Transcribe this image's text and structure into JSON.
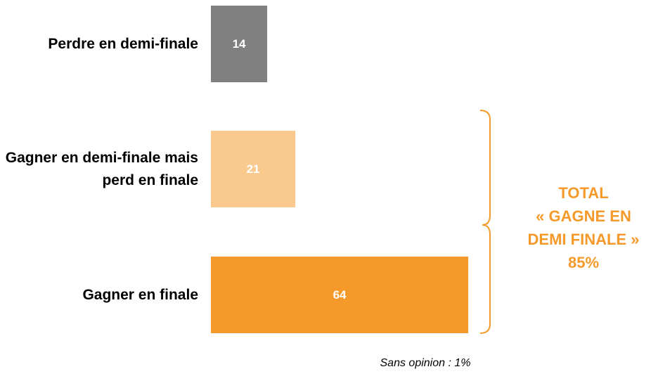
{
  "chart_data": {
    "type": "bar",
    "orientation": "horizontal",
    "categories": [
      "Perdre en demi-finale",
      "Gagner en demi-finale mais perd en finale",
      "Gagner en finale"
    ],
    "values": [
      14,
      21,
      64
    ],
    "colors": [
      "#808080",
      "#f9c98e",
      "#f59a2a"
    ],
    "xlim": [
      0,
      100
    ],
    "annotation": [
      "TOTAL",
      "« GAGNE EN",
      "DEMI FINALE »",
      "85%"
    ],
    "annotation_color": "#f59a2a",
    "note": "Sans opinion : 1%"
  }
}
